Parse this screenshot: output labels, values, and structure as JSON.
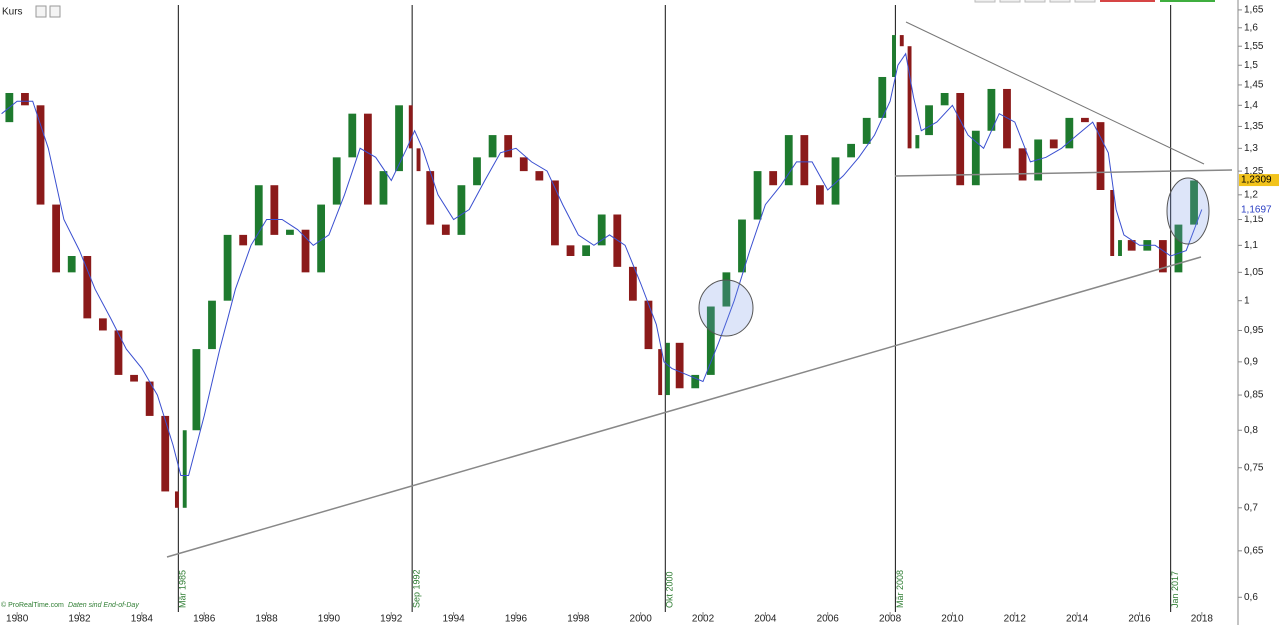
{
  "chart_data": {
    "type": "candlestick",
    "title": "Kurs",
    "footer": [
      "© ProRealTime.com",
      "Daten sind End-of-Day"
    ],
    "xlim": [
      1979.45,
      2019.16
    ],
    "ylim": [
      0.585,
      1.664
    ],
    "log_scale": true,
    "xticks": [
      1980,
      1982,
      1984,
      1986,
      1988,
      1990,
      1992,
      1994,
      1996,
      1998,
      2000,
      2002,
      2004,
      2006,
      2008,
      2010,
      2012,
      2014,
      2016,
      2018
    ],
    "yticks": [
      {
        "value": 0.6,
        "label": "0,6"
      },
      {
        "value": 0.65,
        "label": "0,65"
      },
      {
        "value": 0.7,
        "label": "0,7"
      },
      {
        "value": 0.75,
        "label": "0,75"
      },
      {
        "value": 0.8,
        "label": "0,8"
      },
      {
        "value": 0.85,
        "label": "0,85"
      },
      {
        "value": 0.9,
        "label": "0,9"
      },
      {
        "value": 0.95,
        "label": "0,95"
      },
      1,
      {
        "value": 1.05,
        "label": "1,05"
      },
      {
        "value": 1.1,
        "label": "1,1"
      },
      {
        "value": 1.15,
        "label": "1,15"
      },
      {
        "value": 1.2,
        "label": "1,2"
      },
      {
        "value": 1.25,
        "label": "1,25"
      },
      {
        "value": 1.3,
        "label": "1,3"
      },
      {
        "value": 1.35,
        "label": "1,35"
      },
      {
        "value": 1.4,
        "label": "1,4"
      },
      {
        "value": 1.45,
        "label": "1,45"
      },
      {
        "value": 1.5,
        "label": "1,5"
      },
      {
        "value": 1.55,
        "label": "1,55"
      },
      {
        "value": 1.6,
        "label": "1,6"
      },
      {
        "value": 1.65,
        "label": "1,65"
      }
    ],
    "x": [
      1979.5,
      1980.0,
      1980.5,
      1981.0,
      1981.5,
      1982.0,
      1982.5,
      1983.0,
      1983.5,
      1984.0,
      1984.5,
      1985.0,
      1985.25,
      1985.5,
      1986.0,
      1986.5,
      1987.0,
      1987.5,
      1988.0,
      1988.5,
      1989.0,
      1989.5,
      1990.0,
      1990.5,
      1991.0,
      1991.5,
      1992.0,
      1992.5,
      1992.75,
      1993.0,
      1993.5,
      1994.0,
      1994.5,
      1995.0,
      1995.5,
      1996.0,
      1996.5,
      1997.0,
      1997.5,
      1998.0,
      1998.5,
      1999.0,
      1999.5,
      2000.0,
      2000.5,
      2000.75,
      2001.0,
      2001.5,
      2002.0,
      2002.5,
      2003.0,
      2003.5,
      2004.0,
      2004.5,
      2005.0,
      2005.5,
      2006.0,
      2006.5,
      2007.0,
      2007.5,
      2008.0,
      2008.25,
      2008.5,
      2008.75,
      2009.0,
      2009.5,
      2010.0,
      2010.5,
      2011.0,
      2011.5,
      2012.0,
      2012.5,
      2013.0,
      2013.5,
      2014.0,
      2014.5,
      2015.0,
      2015.25,
      2015.5,
      2016.0,
      2016.5,
      2017.0,
      2017.5,
      2018.0
    ],
    "series": [
      {
        "name": "Kurs",
        "up_color": "#1e7a2e",
        "down_color": "#8b1a1a",
        "values": [
          1.36,
          1.43,
          1.4,
          1.18,
          1.05,
          1.08,
          0.97,
          0.95,
          0.88,
          0.87,
          0.82,
          0.72,
          0.7,
          0.8,
          0.92,
          1.0,
          1.12,
          1.1,
          1.22,
          1.12,
          1.13,
          1.05,
          1.18,
          1.28,
          1.38,
          1.18,
          1.25,
          1.4,
          1.3,
          1.25,
          1.14,
          1.12,
          1.22,
          1.28,
          1.33,
          1.28,
          1.25,
          1.23,
          1.1,
          1.08,
          1.1,
          1.16,
          1.06,
          1.0,
          0.92,
          0.85,
          0.93,
          0.86,
          0.88,
          0.99,
          1.05,
          1.15,
          1.25,
          1.22,
          1.33,
          1.22,
          1.18,
          1.28,
          1.31,
          1.37,
          1.47,
          1.58,
          1.55,
          1.3,
          1.33,
          1.4,
          1.43,
          1.22,
          1.34,
          1.44,
          1.3,
          1.23,
          1.32,
          1.3,
          1.37,
          1.36,
          1.21,
          1.08,
          1.11,
          1.09,
          1.11,
          1.05,
          1.14,
          1.23
        ]
      },
      {
        "color": "#3a4fd0",
        "values": [
          1.38,
          1.41,
          1.41,
          1.3,
          1.15,
          1.09,
          1.02,
          0.97,
          0.92,
          0.89,
          0.85,
          0.78,
          0.74,
          0.74,
          0.82,
          0.92,
          1.02,
          1.1,
          1.15,
          1.15,
          1.13,
          1.1,
          1.12,
          1.2,
          1.3,
          1.28,
          1.23,
          1.3,
          1.34,
          1.3,
          1.2,
          1.15,
          1.17,
          1.23,
          1.29,
          1.3,
          1.27,
          1.25,
          1.18,
          1.12,
          1.1,
          1.12,
          1.1,
          1.03,
          0.96,
          0.9,
          0.89,
          0.88,
          0.87,
          0.93,
          1.0,
          1.09,
          1.18,
          1.22,
          1.27,
          1.27,
          1.21,
          1.24,
          1.28,
          1.33,
          1.41,
          1.5,
          1.53,
          1.42,
          1.34,
          1.36,
          1.4,
          1.33,
          1.3,
          1.38,
          1.36,
          1.27,
          1.28,
          1.3,
          1.33,
          1.36,
          1.29,
          1.17,
          1.12,
          1.1,
          1.1,
          1.08,
          1.09,
          1.17
        ]
      }
    ],
    "events": [
      {
        "x": 1985.17,
        "label": "Mär 1985"
      },
      {
        "x": 1992.67,
        "label": "Sep 1992"
      },
      {
        "x": 2000.79,
        "label": "Okt 2000"
      },
      {
        "x": 2008.17,
        "label": "Mär 2008"
      },
      {
        "x": 2017.0,
        "label": "Jan 2017"
      }
    ],
    "price_labels": [
      {
        "value": 1.2309,
        "label": "1,2309",
        "color": "#f2c31b",
        "text_color": "#000000"
      },
      {
        "value": 1.1697,
        "label": "1,1697",
        "color": "#ffffff",
        "text_color": "#2b3fc4"
      }
    ]
  }
}
